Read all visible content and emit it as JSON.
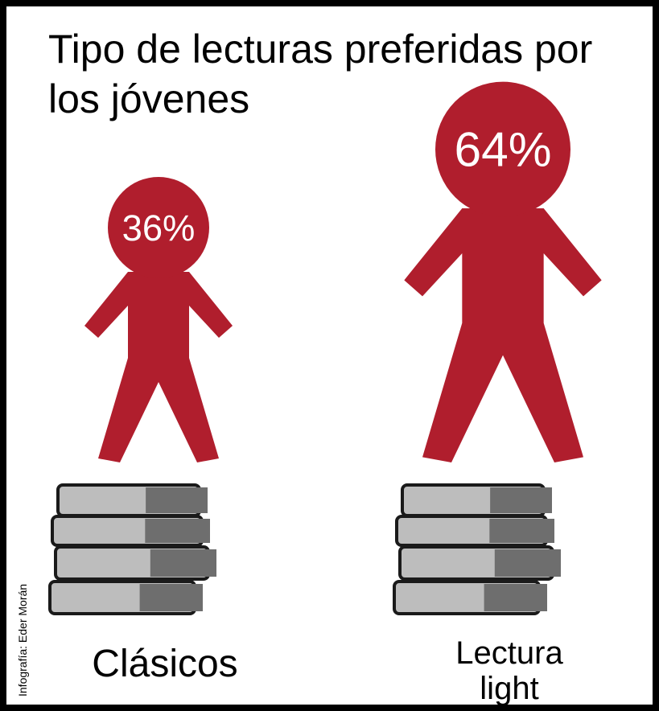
{
  "chart_data": {
    "type": "pictograph",
    "title": "Tipo de lecturas preferidas por los jóvenes",
    "categories": [
      "Clásicos",
      "Lectura light"
    ],
    "values": [
      36,
      64
    ],
    "value_labels": [
      "36%",
      "64%"
    ],
    "color": "#b01e2d",
    "credit": "Infografía: Eder Morán"
  }
}
